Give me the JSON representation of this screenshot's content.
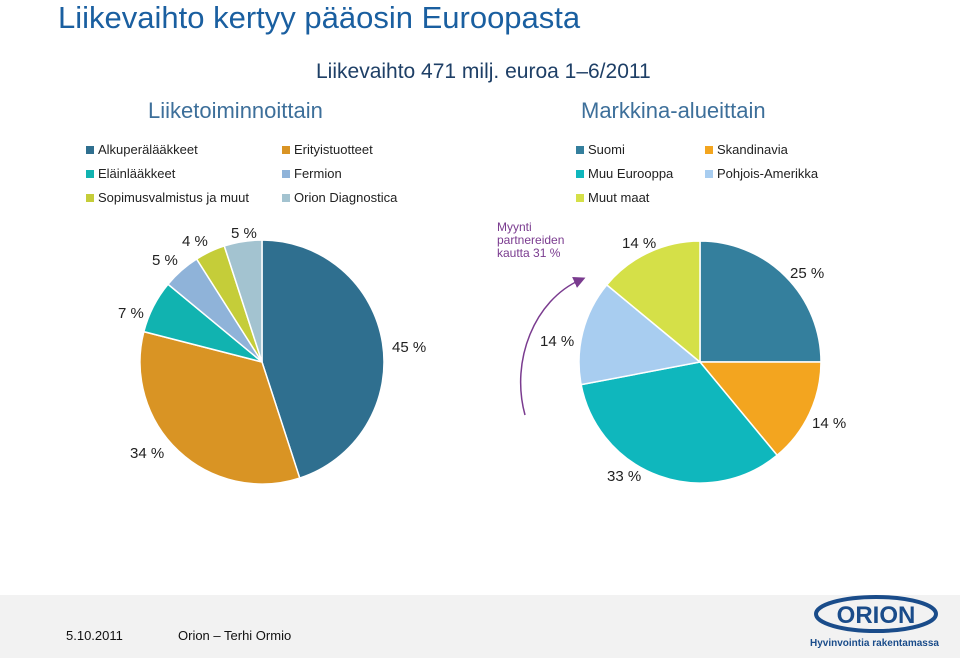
{
  "title": "Liikevaihto kertyy pääosin Euroopasta",
  "subtitle": "Liikevaihto 471 milj. euroa 1–6/2011",
  "note": "Myynti partnereiden kautta 31 %",
  "footer": {
    "date": "5.10.2011",
    "author": "Orion – Terhi Ormio",
    "logo_tagline": "Hyvinvointia rakentamassa"
  },
  "chart_data": [
    {
      "type": "pie",
      "title": "Liiketoiminnoittain",
      "categories": [
        "Alkuperälääkkeet",
        "Erityistuotteet",
        "Eläinlääkkeet",
        "Fermion",
        "Sopimusvalmistus ja muut",
        "Orion Diagnostica"
      ],
      "values": [
        45,
        34,
        7,
        5,
        4,
        5
      ],
      "labels": [
        "45 %",
        "34 %",
        "7 %",
        "5 %",
        "4 %",
        "5 %"
      ],
      "colors": [
        "#2f6f8f",
        "#d99424",
        "#11b3b0",
        "#8fb3d9",
        "#c5cd39",
        "#a3c3d0"
      ]
    },
    {
      "type": "pie",
      "title": "Markkina-alueittain",
      "categories": [
        "Suomi",
        "Skandinavia",
        "Muu Eurooppa",
        "Pohjois-Amerikka",
        "Muut maat"
      ],
      "values": [
        25,
        14,
        33,
        14,
        14
      ],
      "labels": [
        "25 %",
        "14 %",
        "33 %",
        "14 %",
        "14 %"
      ],
      "colors": [
        "#347f9d",
        "#f3a51f",
        "#0fb7bd",
        "#a8cdf0",
        "#d5e048"
      ]
    }
  ]
}
